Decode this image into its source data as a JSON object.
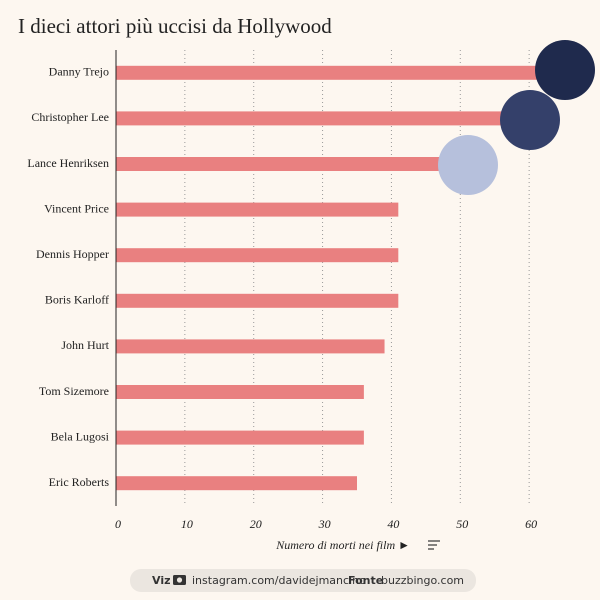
{
  "chart_data": {
    "type": "bar",
    "orientation": "horizontal",
    "title": "I dieci attori più uccisi da Hollywood",
    "categories": [
      "Danny Trejo",
      "Christopher Lee",
      "Lance Henriksen",
      "Vincent Price",
      "Dennis Hopper",
      "Boris Karloff",
      "John Hurt",
      "Tom Sizemore",
      "Bela Lugosi",
      "Eric Roberts"
    ],
    "values": [
      65,
      60,
      51,
      41,
      41,
      41,
      39,
      36,
      36,
      35
    ],
    "color": "#e98080",
    "xlim": [
      0,
      70
    ],
    "xticks": [
      0,
      10,
      20,
      30,
      40,
      50,
      60
    ],
    "grid": true,
    "x_label": "Numero di morti nei film ►",
    "footer": {
      "viz_label": "Viz",
      "instagram": "instagram.com/davidejmancino",
      "source_label": "Fonte",
      "source": "buzzbingo.com"
    }
  }
}
